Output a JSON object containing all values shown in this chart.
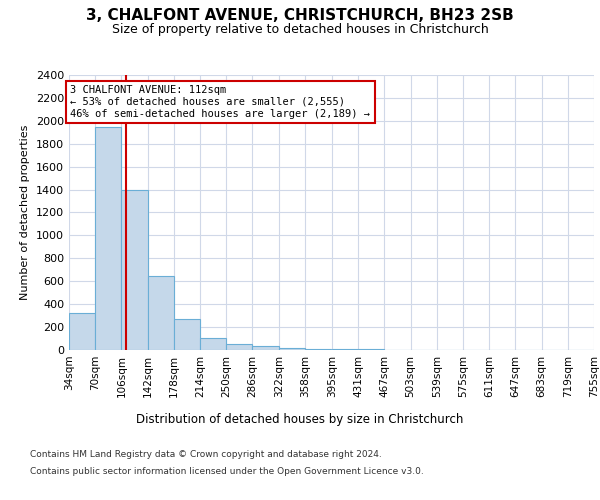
{
  "title": "3, CHALFONT AVENUE, CHRISTCHURCH, BH23 2SB",
  "subtitle": "Size of property relative to detached houses in Christchurch",
  "xlabel": "Distribution of detached houses by size in Christchurch",
  "ylabel": "Number of detached properties",
  "bin_edges": [
    34,
    70,
    106,
    142,
    178,
    214,
    250,
    286,
    322,
    358,
    395,
    431,
    467,
    503,
    539,
    575,
    611,
    647,
    683,
    719,
    755
  ],
  "bar_heights": [
    325,
    1950,
    1400,
    645,
    270,
    105,
    55,
    35,
    20,
    10,
    8,
    5,
    4,
    3,
    2,
    2,
    1,
    1,
    1,
    0
  ],
  "bar_color": "#c5d8ea",
  "bar_edge_color": "#6aaed6",
  "property_size": 112,
  "vline_color": "#cc0000",
  "annotation_line1": "3 CHALFONT AVENUE: 112sqm",
  "annotation_line2": "← 53% of detached houses are smaller (2,555)",
  "annotation_line3": "46% of semi-detached houses are larger (2,189) →",
  "annotation_box_color": "#cc0000",
  "ylim": [
    0,
    2400
  ],
  "yticks": [
    0,
    200,
    400,
    600,
    800,
    1000,
    1200,
    1400,
    1600,
    1800,
    2000,
    2200,
    2400
  ],
  "tick_labels": [
    "34sqm",
    "70sqm",
    "106sqm",
    "142sqm",
    "178sqm",
    "214sqm",
    "250sqm",
    "286sqm",
    "322sqm",
    "358sqm",
    "395sqm",
    "431sqm",
    "467sqm",
    "503sqm",
    "539sqm",
    "575sqm",
    "611sqm",
    "647sqm",
    "683sqm",
    "719sqm",
    "755sqm"
  ],
  "footer_line1": "Contains HM Land Registry data © Crown copyright and database right 2024.",
  "footer_line2": "Contains public sector information licensed under the Open Government Licence v3.0.",
  "background_color": "#ffffff",
  "grid_color": "#d0d8e8"
}
